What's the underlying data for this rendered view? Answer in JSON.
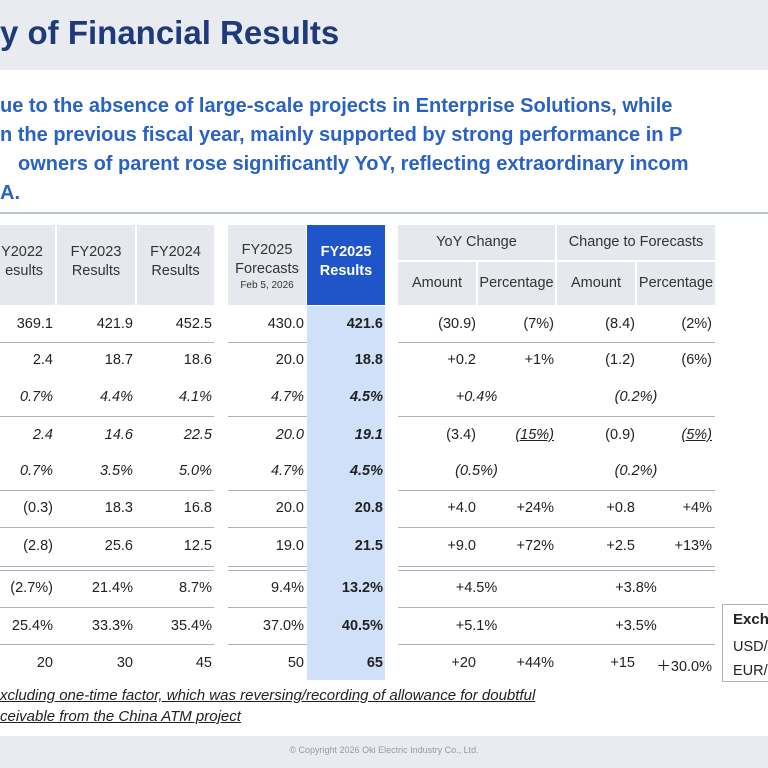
{
  "title": "y of Financial Results",
  "summary": [
    "ue to the absence of large-scale projects in Enterprise Solutions, while",
    "n the previous fiscal year, mainly supported by strong performance in P",
    "owners of parent rose significantly YoY, reflecting extraordinary incom",
    "A."
  ],
  "headers": {
    "fy2022": "Y2022",
    "fy2022_sub": "esults",
    "fy2023": "FY2023",
    "fy2023_sub": "Results",
    "fy2024": "FY2024",
    "fy2024_sub": "Results",
    "fy2025f": "FY2025",
    "fy2025f_sub": "Forecasts",
    "fy2025f_date": "Feb 5, 2026",
    "fy2025r": "FY2025",
    "fy2025r_sub": "Results",
    "yoy": "YoY Change",
    "fc": "Change to Forecasts",
    "amount": "Amount",
    "percentage": "Percentage"
  },
  "rows": [
    {
      "c": [
        "369.1",
        "421.9",
        "452.5",
        "430.0",
        "421.6",
        "(30.9)",
        "(7%)",
        "(8.4)",
        "(2%)"
      ]
    },
    {
      "c": [
        "2.4",
        "18.7",
        "18.6",
        "20.0",
        "18.8",
        "+0.2",
        "+1%",
        "(1.2)",
        "(6%)"
      ]
    },
    {
      "c": [
        "0.7%",
        "4.4%",
        "4.1%",
        "4.7%",
        "4.5%",
        "+0.4%",
        "(0.2%)"
      ]
    },
    {
      "c": [
        "2.4",
        "14.6",
        "22.5",
        "20.0",
        "19.1",
        "(3.4)",
        "(15%)",
        "(0.9)",
        "(5%)"
      ]
    },
    {
      "c": [
        "0.7%",
        "3.5%",
        "5.0%",
        "4.7%",
        "4.5%",
        "(0.5%)",
        "(0.2%)"
      ]
    },
    {
      "c": [
        "(0.3)",
        "18.3",
        "16.8",
        "20.0",
        "20.8",
        "+4.0",
        "+24%",
        "+0.8",
        "+4%"
      ]
    },
    {
      "c": [
        "(2.8)",
        "25.6",
        "12.5",
        "19.0",
        "21.5",
        "+9.0",
        "+72%",
        "+2.5",
        "+13%"
      ]
    },
    {
      "c": [
        "(2.7%)",
        "21.4%",
        "8.7%",
        "9.4%",
        "13.2%",
        "+4.5%",
        "+3.8%"
      ]
    },
    {
      "c": [
        "25.4%",
        "33.3%",
        "35.4%",
        "37.0%",
        "40.5%",
        "+5.1%",
        "+3.5%"
      ]
    },
    {
      "c": [
        "20",
        "30",
        "45",
        "50",
        "65",
        "+20",
        "+44%",
        "+15",
        "＋30.0%"
      ]
    }
  ],
  "exchange": {
    "title": "Exch",
    "usd": "USD/",
    "eur": "EUR/"
  },
  "footnote": [
    "xcluding one-time factor, which was reversing/recording of allowance for doubtful",
    "ceivable from the China ATM project"
  ],
  "copyright": "© Copyright 2026 Oki Electric Industry Co., Ltd."
}
